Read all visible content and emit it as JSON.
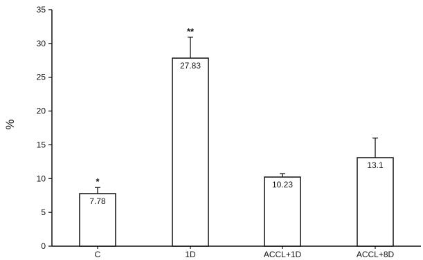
{
  "chart_data": {
    "type": "bar",
    "title": "",
    "xlabel": "",
    "ylabel": "%",
    "ylim": [
      0,
      35
    ],
    "yticks": [
      0,
      5,
      10,
      15,
      20,
      25,
      30,
      35
    ],
    "grid": false,
    "categories": [
      "C",
      "1D",
      "ACCL+1D",
      "ACCL+8D"
    ],
    "values": [
      7.78,
      27.83,
      10.23,
      13.1
    ],
    "value_labels": [
      "7.78",
      "27.83",
      "10.23",
      "13.1"
    ],
    "error_upper": [
      0.9,
      3.1,
      0.5,
      2.9
    ],
    "significance": [
      "*",
      "**",
      "",
      ""
    ],
    "colors": {
      "bar_fill": "#ffffff",
      "stroke": "#111111"
    }
  }
}
